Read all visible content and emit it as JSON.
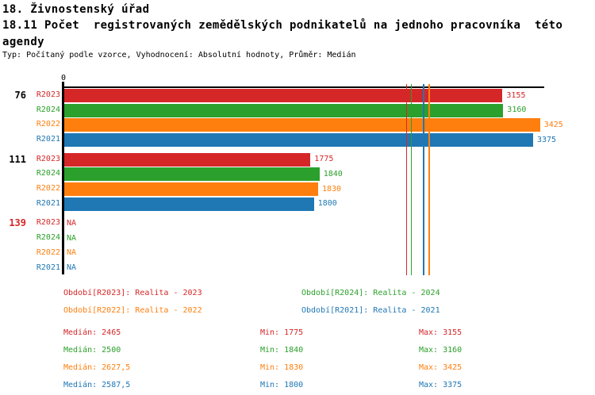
{
  "header": {
    "title": "18. Živnostenský úřad",
    "subtitle_line1": "18.11 Počet  registrovaných zemědělských podnikatelů na jednoho pracovníka  této",
    "subtitle_line2": "agendy",
    "meta": "Typ: Počítaný podle vzorce, Vyhodnocení: Absolutní hodnoty, Průměr: Medián"
  },
  "chart_data": {
    "type": "bar",
    "orientation": "horizontal",
    "title": "18.11 Počet registrovaných zemědělských podnikatelů na jednoho pracovníka této agendy",
    "xlabel": "",
    "ylabel": "",
    "xlim": [
      0,
      3455
    ],
    "x_axis_origin_label": "0",
    "grid": false,
    "na_label": "NA",
    "series_order": [
      "R2023",
      "R2024",
      "R2022",
      "R2021"
    ],
    "series_colors": {
      "R2023": "#d62728",
      "R2024": "#2ca02c",
      "R2022": "#ff7f0e",
      "R2021": "#1f77b4"
    },
    "groups": [
      {
        "label": "76",
        "label_color": "#000000",
        "values": {
          "R2023": 3155,
          "R2024": 3160,
          "R2022": 3425,
          "R2021": 3375
        }
      },
      {
        "label": "111",
        "label_color": "#000000",
        "values": {
          "R2023": 1775,
          "R2024": 1840,
          "R2022": 1830,
          "R2021": 1800
        }
      },
      {
        "label": "139",
        "label_color": "#d62728",
        "values": {
          "R2023": null,
          "R2024": null,
          "R2022": null,
          "R2021": null
        }
      }
    ],
    "median_lines": {
      "R2023": 2465,
      "R2024": 2500,
      "R2022": 2627.5,
      "R2021": 2587.5
    }
  },
  "legend": {
    "items": [
      {
        "text": "Období[R2023]: Realita - 2023",
        "color": "#d62728",
        "col": 0,
        "row": 0
      },
      {
        "text": "Období[R2024]: Realita - 2024",
        "color": "#2ca02c",
        "col": 1,
        "row": 0
      },
      {
        "text": "Období[R2022]: Realita - 2022",
        "color": "#ff7f0e",
        "col": 0,
        "row": 1
      },
      {
        "text": "Období[R2021]: Realita - 2021",
        "color": "#1f77b4",
        "col": 1,
        "row": 1
      }
    ]
  },
  "stats": {
    "rows": [
      {
        "color": "#d62728",
        "median": "Medián: 2465",
        "min": "Min: 1775",
        "max": "Max: 3155"
      },
      {
        "color": "#2ca02c",
        "median": "Medián: 2500",
        "min": "Min: 1840",
        "max": "Max: 3160"
      },
      {
        "color": "#ff7f0e",
        "median": "Medián: 2627,5",
        "min": "Min: 1830",
        "max": "Max: 3425"
      },
      {
        "color": "#1f77b4",
        "median": "Medián: 2587,5",
        "min": "Min: 1800",
        "max": "Max: 3375"
      }
    ]
  }
}
